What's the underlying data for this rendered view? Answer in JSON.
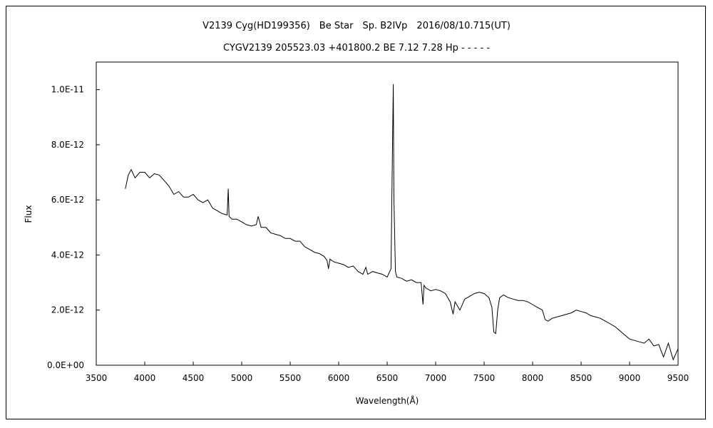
{
  "chart_data": {
    "type": "line",
    "title": "V2139 Cyg(HD199356)　Be Star　Sp. B2IVp　2016/08/10.715(UT)",
    "subtitle": "CYGV2139 205523.03 +401800.2 BE 7.12 7.28 Hp - - - - -",
    "xlabel": "Wavelength(Å)",
    "ylabel": "Flux",
    "xlim": [
      3500,
      9500
    ],
    "ylim": [
      0,
      1.1e-11
    ],
    "x_ticks": [
      3500,
      4000,
      4500,
      5000,
      5500,
      6000,
      6500,
      7000,
      7500,
      8000,
      8500,
      9000,
      9500
    ],
    "x_tick_labels": [
      "3500",
      "4000",
      "4500",
      "5000",
      "5500",
      "6000",
      "6500",
      "7000",
      "7500",
      "8000",
      "8500",
      "9000",
      "9500"
    ],
    "y_ticks": [
      0,
      2e-12,
      4e-12,
      6e-12,
      8e-12,
      1e-11
    ],
    "y_tick_labels": [
      "0.0E+00",
      "2.0E-12",
      "4.0E-12",
      "6.0E-12",
      "8.0E-12",
      "1.0E-11"
    ],
    "grid": false,
    "series": [
      {
        "x": [
          3800,
          3830,
          3860,
          3900,
          3950,
          4000,
          4050,
          4100,
          4150,
          4200,
          4250,
          4300,
          4350,
          4400,
          4450,
          4500,
          4550,
          4600,
          4650,
          4700,
          4750,
          4800,
          4850,
          4861,
          4870,
          4900,
          4950,
          5000,
          5050,
          5100,
          5150,
          5170,
          5200,
          5250,
          5300,
          5350,
          5400,
          5450,
          5500,
          5550,
          5600,
          5650,
          5700,
          5750,
          5800,
          5850,
          5880,
          5895,
          5910,
          5950,
          6000,
          6050,
          6100,
          6150,
          6200,
          6250,
          6280,
          6300,
          6350,
          6400,
          6450,
          6500,
          6540,
          6555,
          6563,
          6570,
          6585,
          6600,
          6650,
          6700,
          6750,
          6800,
          6850,
          6870,
          6880,
          6900,
          6950,
          7000,
          7050,
          7100,
          7150,
          7180,
          7200,
          7250,
          7300,
          7350,
          7400,
          7450,
          7500,
          7550,
          7580,
          7600,
          7620,
          7640,
          7660,
          7700,
          7750,
          7800,
          7850,
          7900,
          7950,
          8000,
          8050,
          8100,
          8130,
          8160,
          8200,
          8250,
          8300,
          8350,
          8400,
          8450,
          8500,
          8550,
          8600,
          8650,
          8700,
          8750,
          8800,
          8850,
          8900,
          8950,
          9000,
          9050,
          9100,
          9150,
          9200,
          9250,
          9300,
          9350,
          9400,
          9450,
          9500
        ],
        "y": [
          6.4e-12,
          6.9e-12,
          7.1e-12,
          6.8e-12,
          7e-12,
          7e-12,
          6.8e-12,
          6.95e-12,
          6.9e-12,
          6.7e-12,
          6.5e-12,
          6.2e-12,
          6.3e-12,
          6.1e-12,
          6.1e-12,
          6.2e-12,
          6e-12,
          5.9e-12,
          6e-12,
          5.7e-12,
          5.6e-12,
          5.5e-12,
          5.45e-12,
          6.4e-12,
          5.4e-12,
          5.3e-12,
          5.3e-12,
          5.2e-12,
          5.1e-12,
          5.05e-12,
          5.1e-12,
          5.4e-12,
          5e-12,
          5e-12,
          4.8e-12,
          4.75e-12,
          4.7e-12,
          4.6e-12,
          4.6e-12,
          4.5e-12,
          4.5e-12,
          4.3e-12,
          4.2e-12,
          4.1e-12,
          4.05e-12,
          3.95e-12,
          3.8e-12,
          3.5e-12,
          3.85e-12,
          3.75e-12,
          3.7e-12,
          3.65e-12,
          3.55e-12,
          3.6e-12,
          3.4e-12,
          3.3e-12,
          3.55e-12,
          3.3e-12,
          3.4e-12,
          3.35e-12,
          3.3e-12,
          3.2e-12,
          3.5e-12,
          8e-12,
          1.02e-11,
          6e-12,
          3.4e-12,
          3.2e-12,
          3.15e-12,
          3.05e-12,
          3.1e-12,
          3e-12,
          3e-12,
          2.2e-12,
          2.9e-12,
          2.8e-12,
          2.7e-12,
          2.75e-12,
          2.7e-12,
          2.6e-12,
          2.3e-12,
          1.85e-12,
          2.3e-12,
          2e-12,
          2.4e-12,
          2.5e-12,
          2.6e-12,
          2.65e-12,
          2.6e-12,
          2.45e-12,
          2.1e-12,
          1.2e-12,
          1.15e-12,
          2e-12,
          2.45e-12,
          2.55e-12,
          2.45e-12,
          2.4e-12,
          2.35e-12,
          2.35e-12,
          2.3e-12,
          2.2e-12,
          2.1e-12,
          2e-12,
          1.65e-12,
          1.6e-12,
          1.7e-12,
          1.75e-12,
          1.8e-12,
          1.85e-12,
          1.9e-12,
          2e-12,
          1.95e-12,
          1.9e-12,
          1.8e-12,
          1.75e-12,
          1.7e-12,
          1.6e-12,
          1.5e-12,
          1.4e-12,
          1.25e-12,
          1.1e-12,
          9.5e-13,
          9e-13,
          8.5e-13,
          8e-13,
          9.5e-13,
          7e-13,
          7.5e-13,
          3e-13,
          8e-13,
          2e-13,
          6e-13
        ]
      }
    ]
  }
}
